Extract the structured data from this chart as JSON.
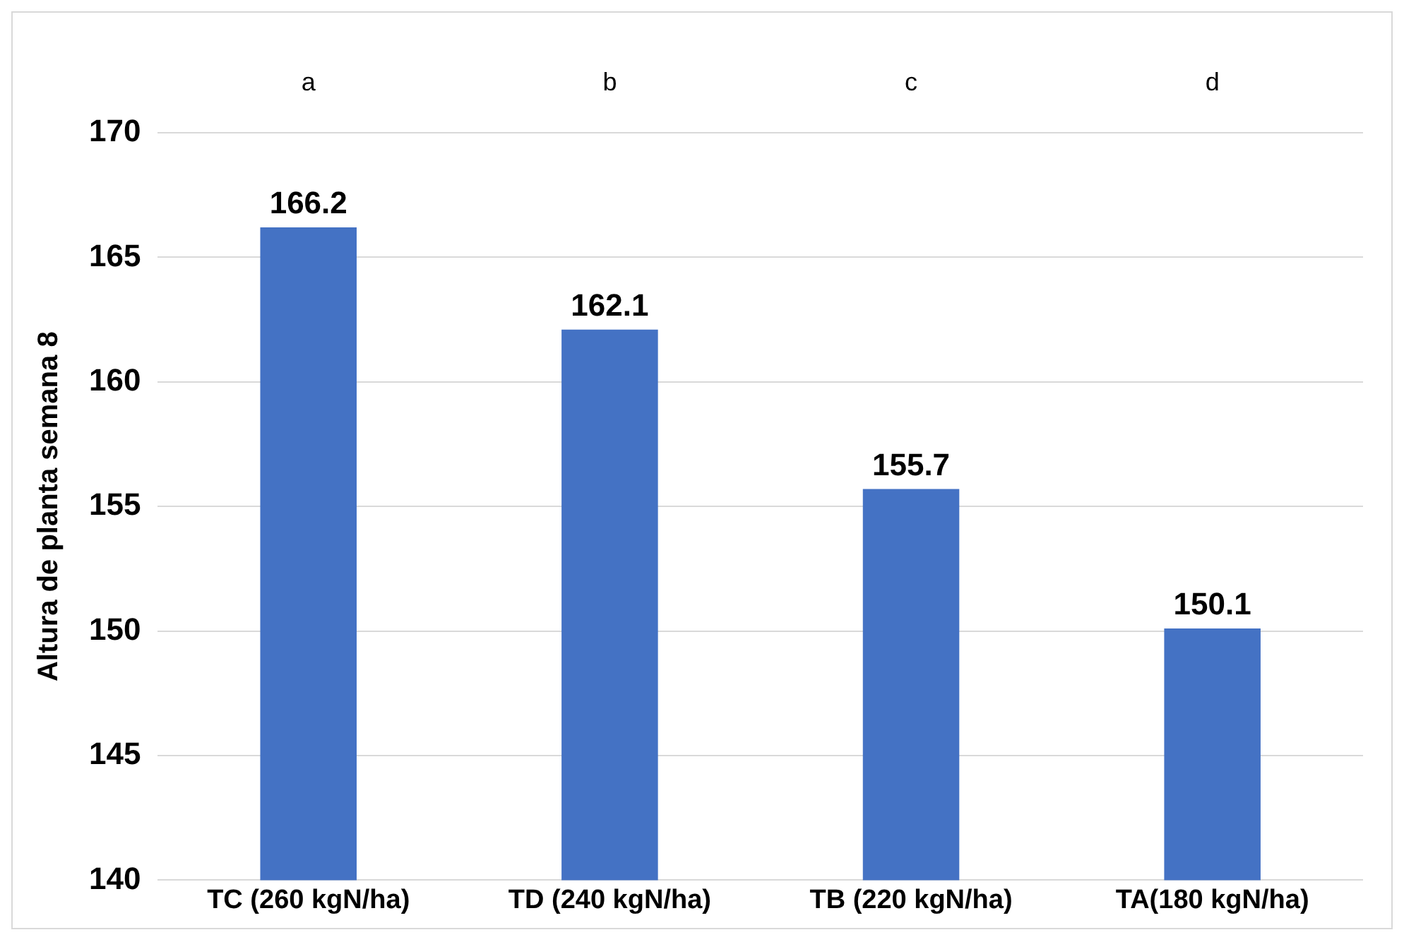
{
  "chart_data": {
    "type": "bar",
    "ylabel": "Altura de planta semana 8",
    "categories": [
      "TC (260 kgN/ha)",
      "TD (240 kgN/ha)",
      "TB (220 kgN/ha)",
      "TA(180 kgN/ha)"
    ],
    "values": [
      166.2,
      162.1,
      155.7,
      150.1
    ],
    "color": "#4472c4",
    "ylim": [
      140,
      170
    ],
    "yticks": [
      140,
      145,
      150,
      155,
      160,
      165,
      170
    ],
    "grid": "y",
    "data_labels": true,
    "legend": false,
    "annotations": [
      "a",
      "b",
      "c",
      "d"
    ]
  }
}
